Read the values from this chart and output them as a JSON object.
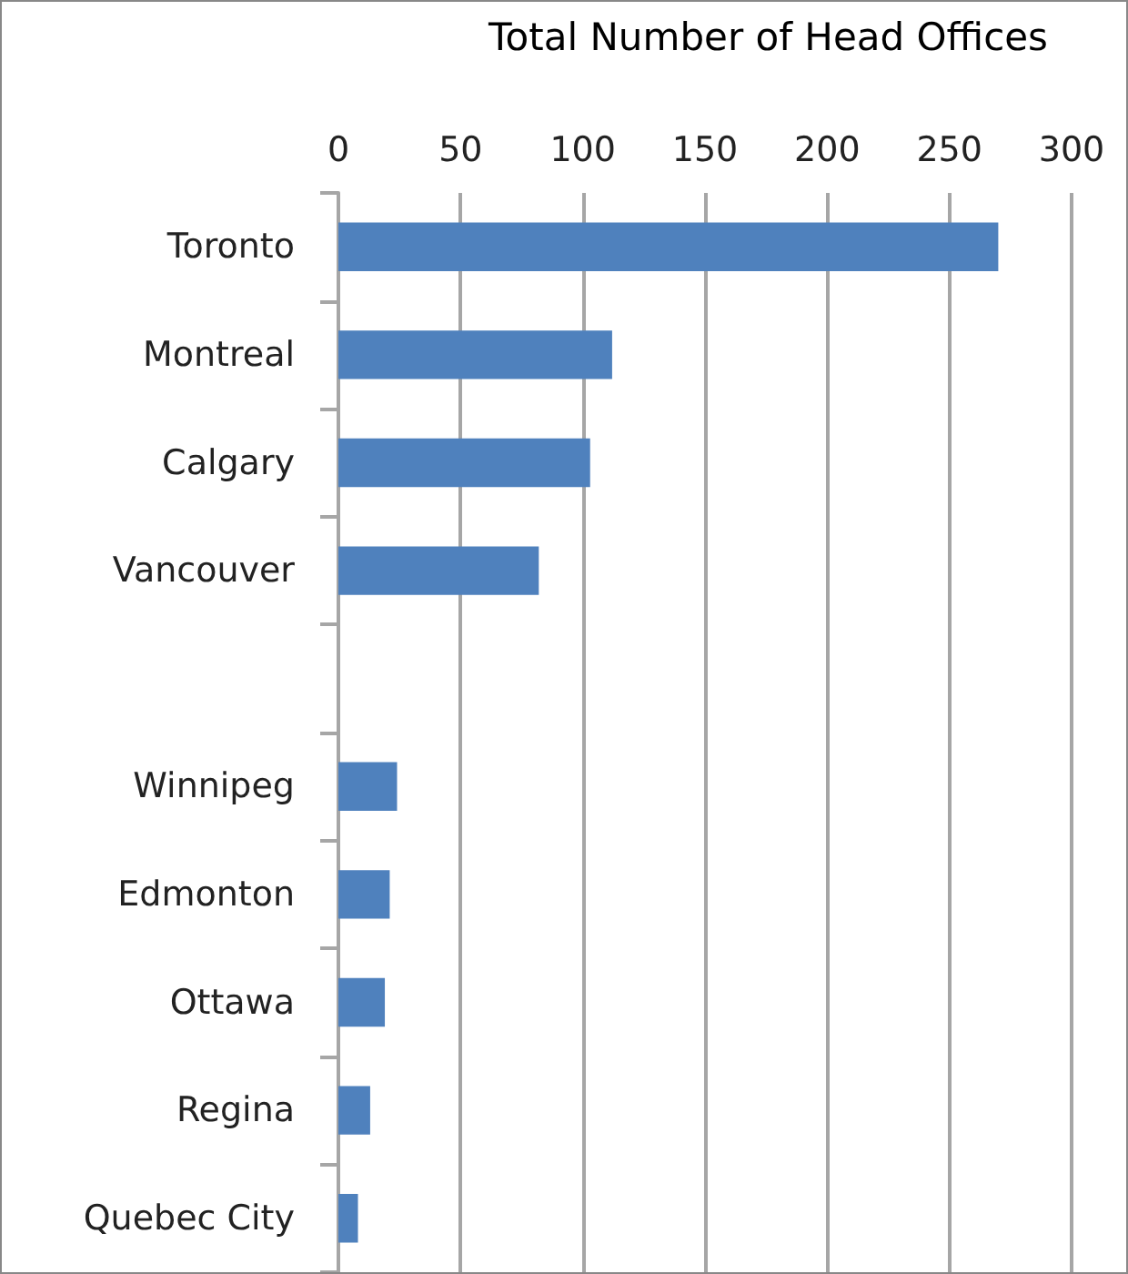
{
  "chart_data": {
    "type": "bar",
    "orientation": "horizontal",
    "title": "Total Number of Head Offices",
    "categories": [
      "Toronto",
      "Montreal",
      "Calgary",
      "Vancouver",
      null,
      "Winnipeg",
      "Edmonton",
      "Ottawa",
      "Regina",
      "Quebec City"
    ],
    "values": [
      270,
      112,
      103,
      82,
      null,
      24,
      21,
      19,
      13,
      8
    ],
    "color": "#4f81bd",
    "xlim": [
      0,
      300
    ],
    "xticks": [
      0,
      50,
      100,
      150,
      200,
      250,
      300
    ],
    "grid": "x"
  }
}
